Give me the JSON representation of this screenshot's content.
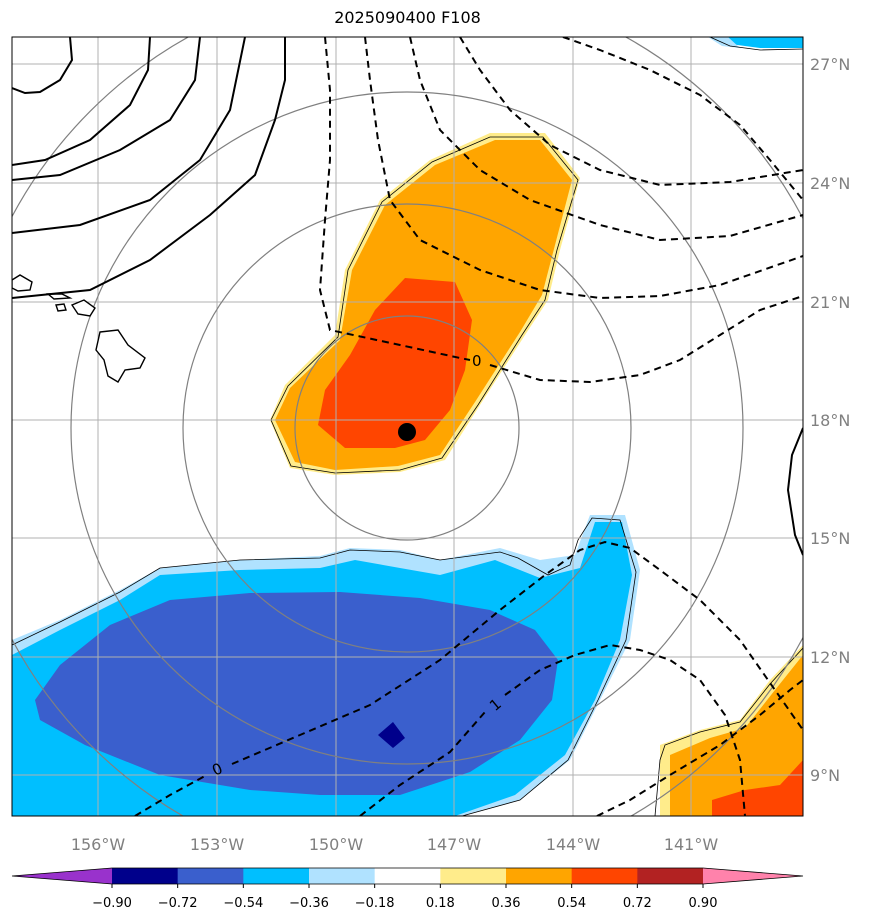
{
  "title": "2025090400 F108",
  "lon_labels": [
    "156°W",
    "153°W",
    "150°W",
    "147°W",
    "144°W",
    "141°W"
  ],
  "lat_labels": [
    "27°N",
    "24°N",
    "21°N",
    "18°N",
    "15°N",
    "12°N",
    "9°N"
  ],
  "contour_labels": [
    "0",
    "0",
    "1"
  ],
  "colorbar": {
    "ticks": [
      "−0.90",
      "−0.72",
      "−0.54",
      "−0.36",
      "−0.18",
      "0.18",
      "0.36",
      "0.54",
      "0.72",
      "0.90"
    ],
    "colors": [
      "#9932cc",
      "#00008b",
      "#3a5fcd",
      "#00bfff",
      "#b0e2ff",
      "#ffffff",
      "#ffec8b",
      "#ffa500",
      "#ff4500",
      "#b22222",
      "#ff82ab"
    ]
  },
  "colors": {
    "neg_dark": "#00008b",
    "neg_mid": "#3a5fcd",
    "neg_light": "#00bfff",
    "neg_pale": "#b0e2ff",
    "pos_pale": "#ffec8b",
    "pos_mid": "#ffa500",
    "pos_strong": "#ff4500",
    "grid": "#b0b0b0",
    "range_rings": "#808080"
  },
  "storm_center": {
    "lon": "148.4°W",
    "lat": "17.7°N"
  }
}
